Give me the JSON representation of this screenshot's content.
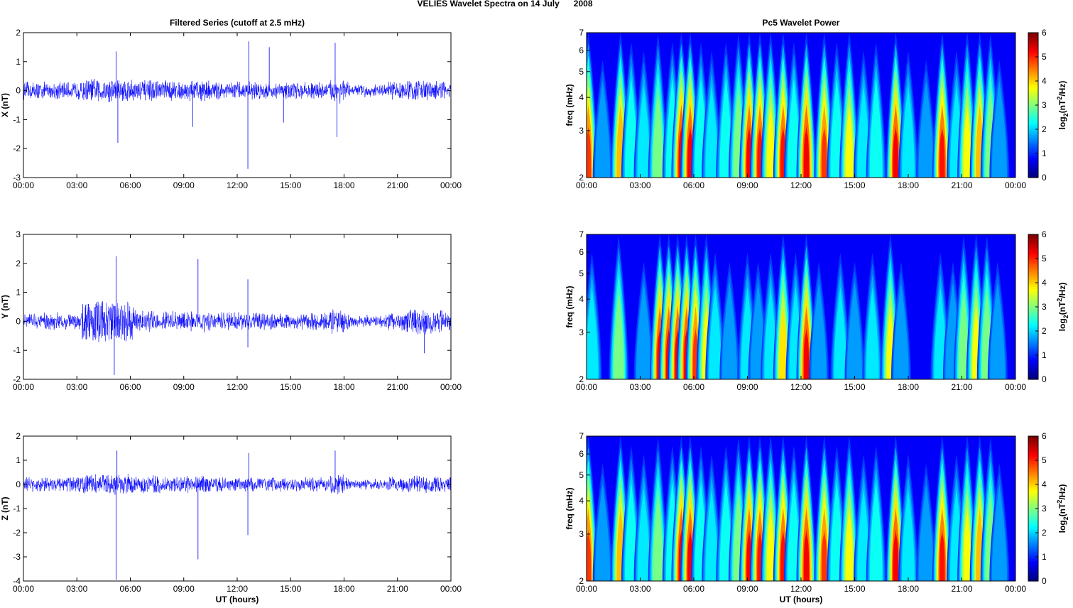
{
  "page": {
    "title": "VELIES Wavelet Spectra on 14 July      2008"
  },
  "chart_data": [
    {
      "type": "line",
      "title": "Filtered Series (cutoff at 2.5 mHz)",
      "ylabel": "X (nT)",
      "xlabel": "",
      "xlim": [
        0,
        24
      ],
      "ylim": [
        -3,
        2
      ],
      "x_ticks": [
        "00:00",
        "03:00",
        "06:00",
        "09:00",
        "12:00",
        "15:00",
        "18:00",
        "21:00",
        "00:00"
      ],
      "y_ticks": [
        "-3",
        "-2",
        "-1",
        "0",
        "1",
        "2"
      ],
      "color": "#0000ff",
      "spikes": [
        {
          "t": 5.3,
          "v": -1.8
        },
        {
          "t": 5.2,
          "v": 1.35
        },
        {
          "t": 9.5,
          "v": -1.25
        },
        {
          "t": 12.6,
          "v": -2.7
        },
        {
          "t": 12.65,
          "v": 1.7
        },
        {
          "t": 14.6,
          "v": -1.1
        },
        {
          "t": 17.5,
          "v": 1.65
        },
        {
          "t": 17.6,
          "v": -1.6
        },
        {
          "t": 13.8,
          "v": 1.5
        }
      ]
    },
    {
      "type": "line",
      "title": "",
      "ylabel": "Y (nT)",
      "xlabel": "",
      "xlim": [
        0,
        24
      ],
      "ylim": [
        -2,
        3
      ],
      "x_ticks": [
        "00:00",
        "03:00",
        "06:00",
        "09:00",
        "12:00",
        "15:00",
        "18:00",
        "21:00",
        "00:00"
      ],
      "y_ticks": [
        "-2",
        "-1",
        "0",
        "1",
        "2",
        "3"
      ],
      "color": "#0000ff",
      "spikes": [
        {
          "t": 5.2,
          "v": 2.25
        },
        {
          "t": 5.1,
          "v": -1.85
        },
        {
          "t": 9.8,
          "v": 2.15
        },
        {
          "t": 12.6,
          "v": 1.45
        },
        {
          "t": 12.6,
          "v": -0.9
        },
        {
          "t": 22.5,
          "v": -1.1
        }
      ]
    },
    {
      "type": "line",
      "title": "",
      "ylabel": "Z (nT)",
      "xlabel": "UT (hours)",
      "xlim": [
        0,
        24
      ],
      "ylim": [
        -4,
        2
      ],
      "x_ticks": [
        "00:00",
        "03:00",
        "06:00",
        "09:00",
        "12:00",
        "15:00",
        "18:00",
        "21:00",
        "00:00"
      ],
      "y_ticks": [
        "-4",
        "-3",
        "-2",
        "-1",
        "0",
        "1",
        "2"
      ],
      "color": "#0000ff",
      "spikes": [
        {
          "t": 5.2,
          "v": -3.95
        },
        {
          "t": 5.25,
          "v": 1.4
        },
        {
          "t": 9.8,
          "v": -3.1
        },
        {
          "t": 12.6,
          "v": -2.1
        },
        {
          "t": 12.65,
          "v": 1.3
        },
        {
          "t": 17.5,
          "v": 1.4
        }
      ]
    },
    {
      "type": "heatmap",
      "title": "Pc5 Wavelet Power",
      "ylabel": "freq (mHz)",
      "xlabel": "",
      "xlim": [
        0,
        24
      ],
      "ylim": [
        2,
        7
      ],
      "yscale": "log",
      "x_ticks": [
        "00:00",
        "03:00",
        "06:00",
        "09:00",
        "12:00",
        "15:00",
        "18:00",
        "21:00",
        "00:00"
      ],
      "y_ticks": [
        "2",
        "3",
        "4",
        "5",
        "6",
        "7"
      ],
      "colorbar": {
        "label": "log2(nT^2/Hz)",
        "ticks": [
          "0",
          "1",
          "2",
          "3",
          "4",
          "5",
          "6"
        ],
        "range": [
          0,
          6
        ],
        "colormap": "jet"
      },
      "bursts": [
        {
          "t": 0.1,
          "p": 5.5
        },
        {
          "t": 0.9,
          "p": 2.5
        },
        {
          "t": 1.9,
          "p": 5.2
        },
        {
          "t": 2.5,
          "p": 3.5
        },
        {
          "t": 3.2,
          "p": 3.0
        },
        {
          "t": 4.0,
          "p": 4.0
        },
        {
          "t": 4.8,
          "p": 3.5
        },
        {
          "t": 5.3,
          "p": 6.0
        },
        {
          "t": 5.8,
          "p": 6.0
        },
        {
          "t": 6.4,
          "p": 3.5
        },
        {
          "t": 7.0,
          "p": 3.0
        },
        {
          "t": 7.8,
          "p": 3.5
        },
        {
          "t": 8.5,
          "p": 4.0
        },
        {
          "t": 9.1,
          "p": 6.0
        },
        {
          "t": 9.7,
          "p": 5.8
        },
        {
          "t": 10.3,
          "p": 4.5
        },
        {
          "t": 11.0,
          "p": 5.8
        },
        {
          "t": 11.6,
          "p": 3.5
        },
        {
          "t": 12.3,
          "p": 6.0
        },
        {
          "t": 13.3,
          "p": 5.5
        },
        {
          "t": 14.0,
          "p": 3.5
        },
        {
          "t": 14.7,
          "p": 4.5
        },
        {
          "t": 15.5,
          "p": 3.0
        },
        {
          "t": 16.2,
          "p": 3.5
        },
        {
          "t": 17.3,
          "p": 6.0
        },
        {
          "t": 18.0,
          "p": 3.0
        },
        {
          "t": 19.0,
          "p": 2.5
        },
        {
          "t": 19.9,
          "p": 5.8
        },
        {
          "t": 20.7,
          "p": 3.0
        },
        {
          "t": 21.3,
          "p": 4.5
        },
        {
          "t": 22.0,
          "p": 5.2
        },
        {
          "t": 22.6,
          "p": 4.0
        },
        {
          "t": 23.1,
          "p": 2.5
        }
      ]
    },
    {
      "type": "heatmap",
      "title": "",
      "ylabel": "freq (mHz)",
      "xlabel": "",
      "xlim": [
        0,
        24
      ],
      "ylim": [
        2,
        7
      ],
      "yscale": "log",
      "x_ticks": [
        "00:00",
        "03:00",
        "06:00",
        "09:00",
        "12:00",
        "15:00",
        "18:00",
        "21:00",
        "00:00"
      ],
      "y_ticks": [
        "2",
        "3",
        "4",
        "5",
        "6",
        "7"
      ],
      "colorbar": {
        "label": "log2(nT^2/Hz)",
        "ticks": [
          "0",
          "1",
          "2",
          "3",
          "4",
          "5",
          "6"
        ],
        "range": [
          0,
          6
        ],
        "colormap": "jet"
      },
      "bursts": [
        {
          "t": 0.3,
          "p": 3.0
        },
        {
          "t": 1.8,
          "p": 4.0
        },
        {
          "t": 3.2,
          "p": 2.5
        },
        {
          "t": 4.1,
          "p": 6.0
        },
        {
          "t": 4.6,
          "p": 6.0
        },
        {
          "t": 5.1,
          "p": 6.0
        },
        {
          "t": 5.6,
          "p": 6.0
        },
        {
          "t": 6.1,
          "p": 5.5
        },
        {
          "t": 6.7,
          "p": 4.5
        },
        {
          "t": 7.2,
          "p": 3.0
        },
        {
          "t": 8.0,
          "p": 2.5
        },
        {
          "t": 9.0,
          "p": 3.0
        },
        {
          "t": 9.6,
          "p": 2.5
        },
        {
          "t": 10.3,
          "p": 3.0
        },
        {
          "t": 11.0,
          "p": 4.8
        },
        {
          "t": 11.7,
          "p": 3.0
        },
        {
          "t": 12.3,
          "p": 6.0
        },
        {
          "t": 13.0,
          "p": 2.5
        },
        {
          "t": 14.2,
          "p": 3.0
        },
        {
          "t": 15.0,
          "p": 2.5
        },
        {
          "t": 16.0,
          "p": 3.0
        },
        {
          "t": 17.0,
          "p": 4.5
        },
        {
          "t": 17.6,
          "p": 2.5
        },
        {
          "t": 19.8,
          "p": 3.0
        },
        {
          "t": 20.5,
          "p": 2.5
        },
        {
          "t": 21.1,
          "p": 4.0
        },
        {
          "t": 21.8,
          "p": 4.5
        },
        {
          "t": 22.4,
          "p": 4.0
        },
        {
          "t": 23.0,
          "p": 2.5
        }
      ]
    },
    {
      "type": "heatmap",
      "title": "",
      "ylabel": "freq (mHz)",
      "xlabel": "UT (hours)",
      "xlim": [
        0,
        24
      ],
      "ylim": [
        2,
        7
      ],
      "yscale": "log",
      "x_ticks": [
        "00:00",
        "03:00",
        "06:00",
        "09:00",
        "12:00",
        "15:00",
        "18:00",
        "21:00",
        "00:00"
      ],
      "y_ticks": [
        "2",
        "3",
        "4",
        "5",
        "6",
        "7"
      ],
      "colorbar": {
        "label": "log2(nT^2/Hz)",
        "ticks": [
          "0",
          "1",
          "2",
          "3",
          "4",
          "5",
          "6"
        ],
        "range": [
          0,
          6
        ],
        "colormap": "jet"
      },
      "bursts": [
        {
          "t": 0.1,
          "p": 5.5
        },
        {
          "t": 0.9,
          "p": 2.5
        },
        {
          "t": 1.9,
          "p": 5.2
        },
        {
          "t": 2.5,
          "p": 3.5
        },
        {
          "t": 3.2,
          "p": 3.0
        },
        {
          "t": 4.0,
          "p": 4.0
        },
        {
          "t": 4.8,
          "p": 3.5
        },
        {
          "t": 5.3,
          "p": 6.0
        },
        {
          "t": 5.8,
          "p": 6.0
        },
        {
          "t": 6.4,
          "p": 3.5
        },
        {
          "t": 7.0,
          "p": 3.0
        },
        {
          "t": 7.8,
          "p": 3.5
        },
        {
          "t": 8.5,
          "p": 4.0
        },
        {
          "t": 9.1,
          "p": 6.0
        },
        {
          "t": 9.7,
          "p": 5.8
        },
        {
          "t": 10.3,
          "p": 4.5
        },
        {
          "t": 11.0,
          "p": 5.8
        },
        {
          "t": 11.6,
          "p": 3.5
        },
        {
          "t": 12.3,
          "p": 6.0
        },
        {
          "t": 13.3,
          "p": 5.5
        },
        {
          "t": 14.0,
          "p": 3.5
        },
        {
          "t": 14.7,
          "p": 4.5
        },
        {
          "t": 15.5,
          "p": 3.0
        },
        {
          "t": 16.2,
          "p": 3.5
        },
        {
          "t": 17.3,
          "p": 6.0
        },
        {
          "t": 18.0,
          "p": 3.0
        },
        {
          "t": 19.0,
          "p": 2.5
        },
        {
          "t": 19.9,
          "p": 5.8
        },
        {
          "t": 20.7,
          "p": 3.0
        },
        {
          "t": 21.3,
          "p": 4.5
        },
        {
          "t": 22.0,
          "p": 5.2
        },
        {
          "t": 22.6,
          "p": 4.0
        },
        {
          "t": 23.1,
          "p": 2.5
        }
      ]
    }
  ]
}
